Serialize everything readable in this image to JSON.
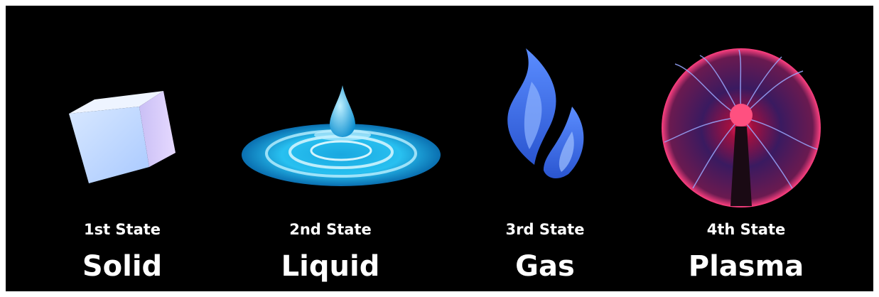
{
  "states": [
    {
      "ordinal": "1st State",
      "name": "Solid"
    },
    {
      "ordinal": "2nd State",
      "name": "Liquid"
    },
    {
      "ordinal": "3rd State",
      "name": "Gas"
    },
    {
      "ordinal": "4th State",
      "name": "Plasma"
    }
  ]
}
